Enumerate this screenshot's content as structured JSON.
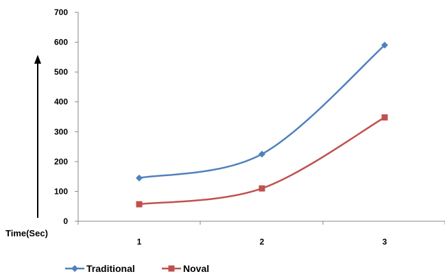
{
  "chart_data": {
    "type": "line",
    "title": "",
    "xlabel": "",
    "ylabel": "Time(Sec)",
    "x": [
      "1",
      "2",
      "3"
    ],
    "ylim": [
      0,
      700
    ],
    "yticks": [
      "0",
      "100",
      "200",
      "300",
      "400",
      "500",
      "600",
      "700"
    ],
    "grid": false,
    "legend_position": "bottom-left",
    "series": [
      {
        "name": "Traditional",
        "values": [
          145,
          225,
          590
        ],
        "color": "#4f81bd",
        "marker": "diamond"
      },
      {
        "name": "Noval",
        "values": [
          57,
          110,
          348
        ],
        "color": "#c0504d",
        "marker": "square"
      }
    ]
  }
}
